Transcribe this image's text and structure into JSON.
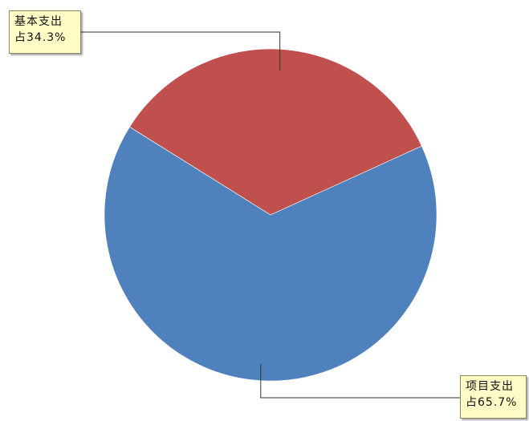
{
  "chart_data": {
    "type": "pie",
    "slices": [
      {
        "label": "基本支出",
        "percent_text": "占34.3%",
        "value": 34.3,
        "color": "#c0504d"
      },
      {
        "label": "项目支出",
        "percent_text": "占65.7%",
        "value": 65.7,
        "color": "#4f81bd"
      }
    ],
    "start_angle_deg": -148,
    "legend": "none"
  }
}
